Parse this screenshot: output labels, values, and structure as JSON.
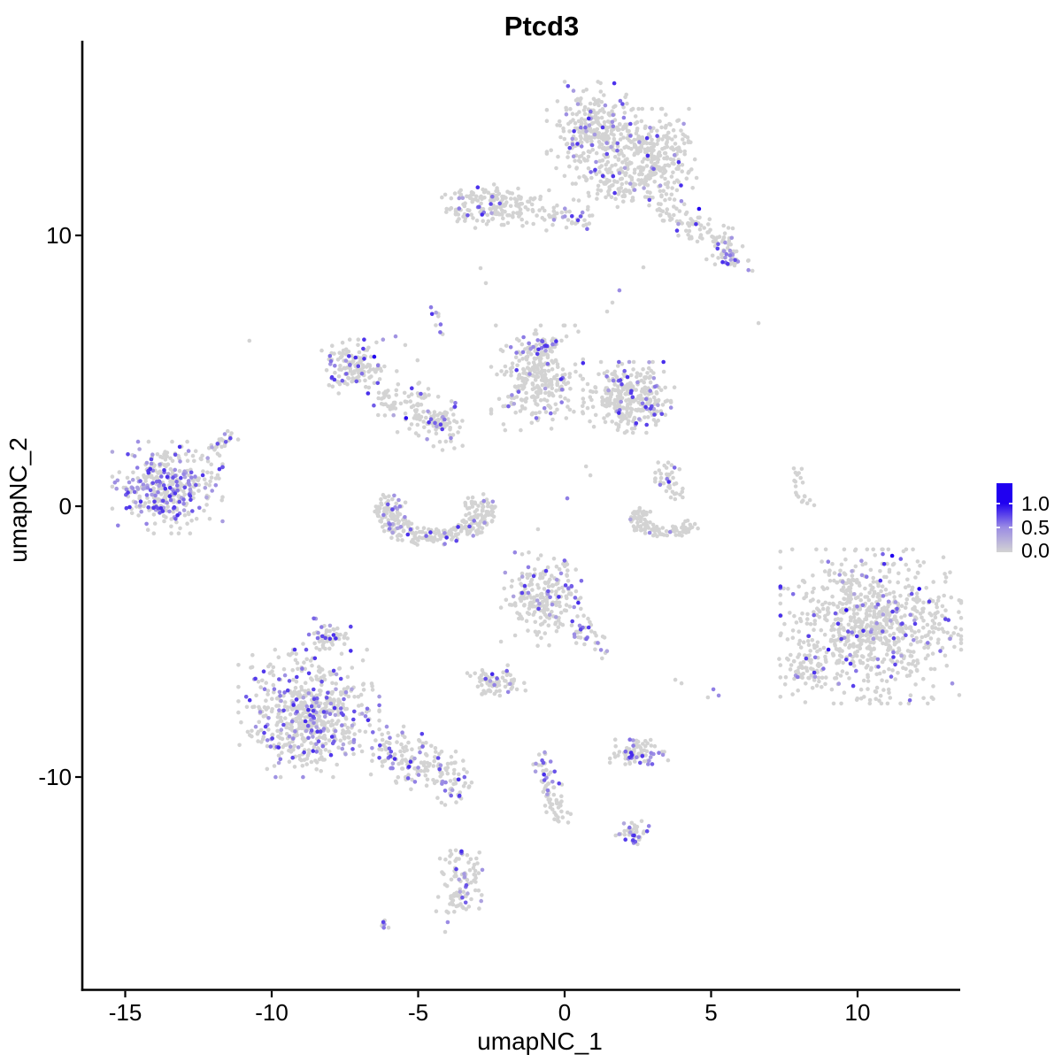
{
  "title": "Ptcd3",
  "legend": {
    "labels": [
      "1.0",
      "0.5",
      "0.0"
    ],
    "breaks": [
      1.0,
      0.5,
      0.0
    ]
  },
  "colors": {
    "point_zero": "#D3D3D3",
    "point_mid": "#9B8CE4",
    "point_high": "#2000F0",
    "axis": "#000000",
    "background": "#FFFFFF"
  },
  "chart_data": {
    "type": "scatter",
    "title": "Ptcd3",
    "xlabel": "umapNC_1",
    "ylabel": "umapNC_2",
    "x_ticks": [
      -15,
      -10,
      -5,
      0,
      5,
      10
    ],
    "y_ticks": [
      10,
      0,
      -10
    ],
    "xlim": [
      -16.5,
      13.5
    ],
    "ylim": [
      -17.9,
      17.2
    ],
    "grid": false,
    "legend_position": "right",
    "color_scale": {
      "low": "#D3D3D3",
      "mid": "#9B8CE4",
      "high": "#2000F0",
      "breaks": [
        0.0,
        0.5,
        1.0
      ]
    },
    "clusters": [
      {
        "name": "top-main-left",
        "shape": "blob",
        "cx": 0.97,
        "cy": 13.79,
        "rx": 1.51,
        "ry": 1.8,
        "n": 300,
        "frac": 0.15
      },
      {
        "name": "top-main-right",
        "shape": "blob",
        "cx": 2.99,
        "cy": 12.97,
        "rx": 1.45,
        "ry": 1.63,
        "n": 270,
        "frac": 0.05
      },
      {
        "name": "top-main-bottom",
        "shape": "blob",
        "cx": 1.87,
        "cy": 11.99,
        "rx": 1.2,
        "ry": 0.9,
        "n": 80,
        "frac": 0.08
      },
      {
        "name": "top-trail",
        "shape": "strip",
        "cx": 3.08,
        "cy": 11.34,
        "x2": 6.04,
        "y2": 9.02,
        "w": 0.42,
        "n": 120,
        "frac": 0.1
      },
      {
        "name": "top-trail-patch",
        "shape": "blob",
        "cx": 5.71,
        "cy": 9.18,
        "rx": 0.35,
        "ry": 0.4,
        "n": 18,
        "frac": 0.5
      },
      {
        "name": "upper-left-band",
        "shape": "blob",
        "cx": -2.36,
        "cy": 11.11,
        "rx": 1.75,
        "ry": 0.8,
        "n": 170,
        "frac": 0.1
      },
      {
        "name": "upper-left-band-tail",
        "shape": "strip",
        "cx": -0.79,
        "cy": 10.85,
        "x2": 0.91,
        "y2": 10.59,
        "w": 0.28,
        "n": 45,
        "frac": 0.22
      },
      {
        "name": "upper-left-band-tip",
        "shape": "blob",
        "cx": -3.75,
        "cy": 10.85,
        "rx": 0.35,
        "ry": 0.3,
        "n": 12,
        "frac": 0.08
      },
      {
        "name": "mid-left-top",
        "shape": "blob",
        "cx": -7.25,
        "cy": 5.16,
        "rx": 1.05,
        "ry": 0.95,
        "n": 140,
        "frac": 0.18
      },
      {
        "name": "mid-left-chain",
        "shape": "strip",
        "cx": -6.47,
        "cy": 4.12,
        "x2": -3.56,
        "y2": 2.78,
        "w": 0.5,
        "n": 130,
        "frac": 0.1
      },
      {
        "name": "mid-left-chain-blob",
        "shape": "blob",
        "cx": -4.32,
        "cy": 3.1,
        "rx": 0.5,
        "ry": 0.4,
        "n": 40,
        "frac": 0.18
      },
      {
        "name": "mid-left-spur",
        "shape": "strip",
        "cx": -4.5,
        "cy": 7.35,
        "x2": -4.17,
        "y2": 6.24,
        "w": 0.15,
        "n": 9,
        "frac": 0.45
      },
      {
        "name": "crescent",
        "shape": "arc",
        "cx": -4.44,
        "cy": -0.16,
        "rx": 2.05,
        "ry": 1.3,
        "a0": 150,
        "a1": 390,
        "t": 0.45,
        "n": 290,
        "frac": 0.11
      },
      {
        "name": "center",
        "shape": "blob",
        "cx": -0.94,
        "cy": 4.74,
        "rx": 1.5,
        "ry": 1.85,
        "n": 290,
        "frac": 0.08
      },
      {
        "name": "center-top-patch",
        "shape": "blob",
        "cx": -0.76,
        "cy": 5.98,
        "rx": 0.55,
        "ry": 0.4,
        "n": 28,
        "frac": 0.5
      },
      {
        "name": "center-right",
        "shape": "blob",
        "cx": 2.18,
        "cy": 4.02,
        "rx": 1.5,
        "ry": 1.25,
        "n": 270,
        "frac": 0.08
      },
      {
        "name": "center-right-edge",
        "shape": "blob",
        "cx": 2.9,
        "cy": 3.79,
        "rx": 0.7,
        "ry": 0.75,
        "n": 40,
        "frac": 0.35
      },
      {
        "name": "right-strip",
        "shape": "strip",
        "cx": 7.95,
        "cy": 1.41,
        "x2": 8.1,
        "y2": 0.03,
        "w": 0.22,
        "n": 20,
        "frac": 0
      },
      {
        "name": "center-hook",
        "shape": "arc",
        "cx": 3.47,
        "cy": -0.42,
        "rx": 1.35,
        "ry": 0.72,
        "a0": 140,
        "a1": 340,
        "t": 0.5,
        "n": 110,
        "frac": 0.03
      },
      {
        "name": "center-hook-stem",
        "shape": "strip",
        "cx": 3.29,
        "cy": 1.57,
        "x2": 3.78,
        "y2": 0.29,
        "w": 0.26,
        "n": 40,
        "frac": 0.05
      },
      {
        "name": "left",
        "shape": "blob",
        "cx": -13.56,
        "cy": 0.69,
        "rx": 1.8,
        "ry": 1.62,
        "n": 380,
        "frac": 0.38
      },
      {
        "name": "left-arm",
        "shape": "strip",
        "cx": -12.24,
        "cy": 1.96,
        "x2": -11.21,
        "y2": 2.75,
        "w": 0.24,
        "n": 28,
        "frac": 0.2
      },
      {
        "name": "right-large",
        "shape": "blob",
        "cx": 10.45,
        "cy": -4.44,
        "rx": 2.95,
        "ry": 2.72,
        "n": 820,
        "frac": 0.1
      },
      {
        "name": "right-large-tip",
        "shape": "blob",
        "cx": 8.16,
        "cy": -6.05,
        "rx": 0.8,
        "ry": 0.75,
        "n": 55,
        "frac": 0.12
      },
      {
        "name": "bottom-left",
        "shape": "blob",
        "cx": -8.73,
        "cy": -7.65,
        "rx": 2.3,
        "ry": 2.25,
        "n": 620,
        "frac": 0.22
      },
      {
        "name": "bottom-left-top",
        "shape": "blob",
        "cx": -8.19,
        "cy": -4.77,
        "rx": 0.85,
        "ry": 0.6,
        "n": 55,
        "frac": 0.2
      },
      {
        "name": "bottom-left-tail",
        "shape": "strip",
        "cx": -6.34,
        "cy": -8.95,
        "x2": -3.38,
        "y2": -10.13,
        "w": 0.5,
        "n": 180,
        "frac": 0.2
      },
      {
        "name": "bottom-center",
        "shape": "blob",
        "cx": -0.76,
        "cy": -3.43,
        "rx": 1.35,
        "ry": 1.65,
        "n": 230,
        "frac": 0.11
      },
      {
        "name": "bottom-center-trail",
        "shape": "strip",
        "cx": 0.42,
        "cy": -4.22,
        "x2": 1.3,
        "y2": -5.39,
        "w": 0.3,
        "n": 34,
        "frac": 0.35
      },
      {
        "name": "small-below-center",
        "shape": "blob",
        "cx": -2.33,
        "cy": -6.5,
        "rx": 0.95,
        "ry": 0.6,
        "n": 75,
        "frac": 0.15
      },
      {
        "name": "bottom-mid-oval",
        "shape": "blob",
        "cx": 2.54,
        "cy": -9.12,
        "rx": 0.95,
        "ry": 0.48,
        "n": 85,
        "frac": 0.25
      },
      {
        "name": "bottom-chain",
        "shape": "strip",
        "cx": -0.82,
        "cy": -8.99,
        "x2": -0.12,
        "y2": -11.6,
        "w": 0.2,
        "n": 70,
        "frac": 0.2
      },
      {
        "name": "bottom-small",
        "shape": "blob",
        "cx": 2.3,
        "cy": -12.06,
        "rx": 0.55,
        "ry": 0.45,
        "n": 42,
        "frac": 0.25
      },
      {
        "name": "bottom-strip",
        "shape": "strip",
        "cx": -3.47,
        "cy": -12.58,
        "x2": -3.63,
        "y2": -15.0,
        "w": 0.33,
        "n": 100,
        "frac": 0.15
      },
      {
        "name": "bottom-tiny",
        "shape": "blob",
        "cx": -6.1,
        "cy": -15.49,
        "rx": 0.27,
        "ry": 0.27,
        "n": 7,
        "frac": 0.5
      }
    ],
    "singletons": [
      {
        "x": -2.87,
        "y": 8.79,
        "v": 0
      },
      {
        "x": -2.69,
        "y": 8.24,
        "v": 0
      },
      {
        "x": 4.59,
        "y": 10.98,
        "v": 1
      },
      {
        "x": -6.5,
        "y": 5.52,
        "v": 1
      },
      {
        "x": 11.18,
        "y": -1.83,
        "v": 1
      },
      {
        "x": -10.76,
        "y": 6.11,
        "v": 0
      },
      {
        "x": 6.62,
        "y": 6.76,
        "v": 0
      },
      {
        "x": 0.09,
        "y": 0.29,
        "v": 0.55
      },
      {
        "x": 0.73,
        "y": 1.47,
        "v": 0
      },
      {
        "x": 0.88,
        "y": 1.14,
        "v": 0
      },
      {
        "x": -0.91,
        "y": -0.85,
        "v": 0
      },
      {
        "x": -1.24,
        "y": -2.25,
        "v": 0.55
      },
      {
        "x": -0.12,
        "y": -2.48,
        "v": 0.5
      },
      {
        "x": 1.87,
        "y": 7.97,
        "v": 0.5
      },
      {
        "x": 1.63,
        "y": 7.52,
        "v": 0
      },
      {
        "x": 1.45,
        "y": 7.19,
        "v": 0
      },
      {
        "x": 2.69,
        "y": 8.82,
        "v": 0
      },
      {
        "x": 3.78,
        "y": -6.41,
        "v": 0
      },
      {
        "x": 3.99,
        "y": -6.54,
        "v": 0
      },
      {
        "x": 5.08,
        "y": -6.76,
        "v": 0.55
      },
      {
        "x": 5.26,
        "y": -6.99,
        "v": 0.5
      },
      {
        "x": 4.89,
        "y": -7.06,
        "v": 0
      },
      {
        "x": -4.08,
        "y": -15.72,
        "v": 0
      },
      {
        "x": -3.99,
        "y": -15.36,
        "v": 0.5
      },
      {
        "x": -5.77,
        "y": 6.27,
        "v": 0.45
      },
      {
        "x": -5.44,
        "y": 5.95,
        "v": 0
      },
      {
        "x": -5.02,
        "y": 5.39,
        "v": 0
      },
      {
        "x": 3.26,
        "y": 0.79,
        "v": 0.55
      },
      {
        "x": 3.6,
        "y": -0.95,
        "v": 0.5
      }
    ]
  }
}
